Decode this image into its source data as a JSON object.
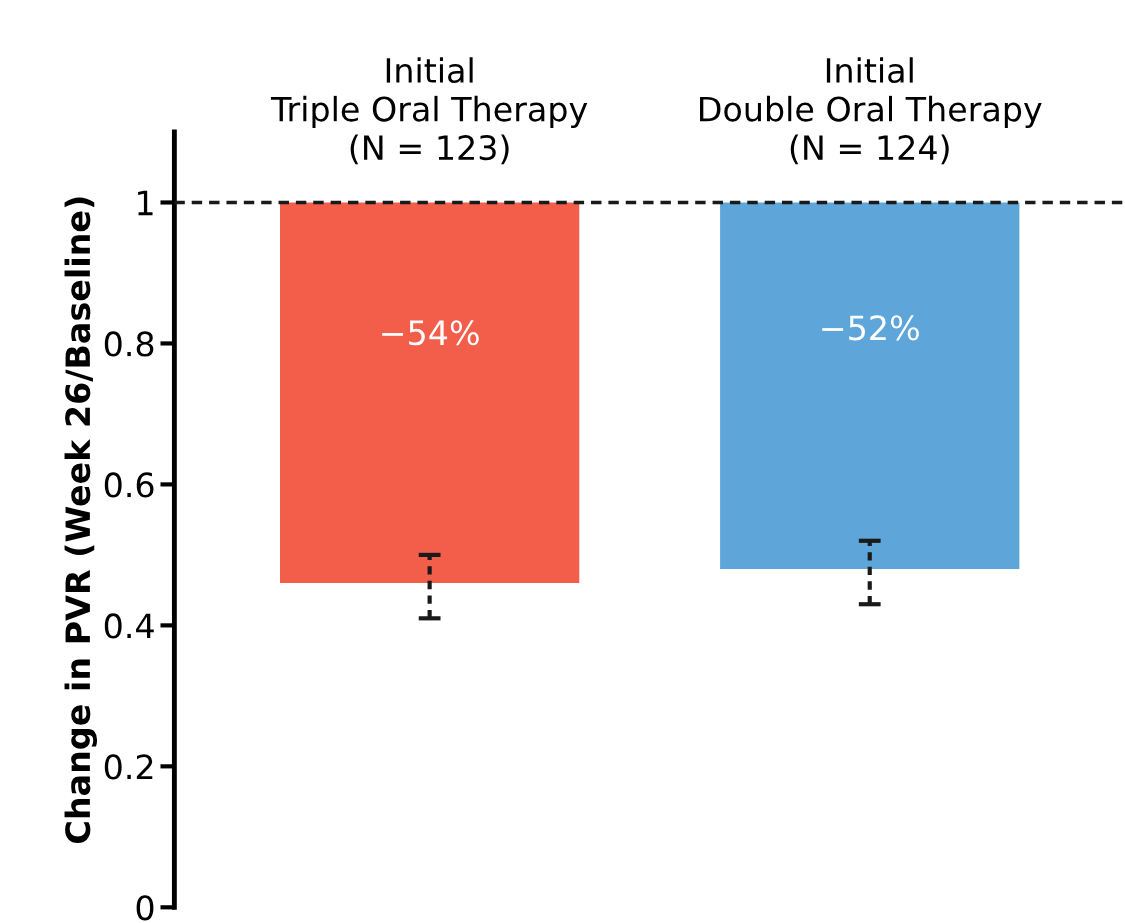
{
  "chart_data": {
    "type": "bar",
    "ylabel": "Change in PVR (Week 26/Baseline)",
    "categories": [
      "Initial\nTriple Oral Therapy\n(N = 123)",
      "Initial\nDouble Oral Therapy\n(N = 124)"
    ],
    "base": [
      1,
      1
    ],
    "values": [
      -0.54,
      -0.52
    ],
    "colors": [
      "#f25e4a",
      "#5ea5da"
    ],
    "errors": [
      [
        0.41,
        0.5
      ],
      [
        0.43,
        0.52
      ]
    ],
    "value_labels": [
      "−54%",
      "−52%"
    ],
    "ylim": [
      0,
      1.1
    ],
    "yticks": [
      0,
      0.2,
      0.4,
      0.6,
      0.8,
      1
    ],
    "ref_lines": [
      {
        "axis": "y",
        "value": 1,
        "color": "#1a1a1a",
        "line_style": "dashed"
      }
    ],
    "grid": false,
    "legend": false
  }
}
